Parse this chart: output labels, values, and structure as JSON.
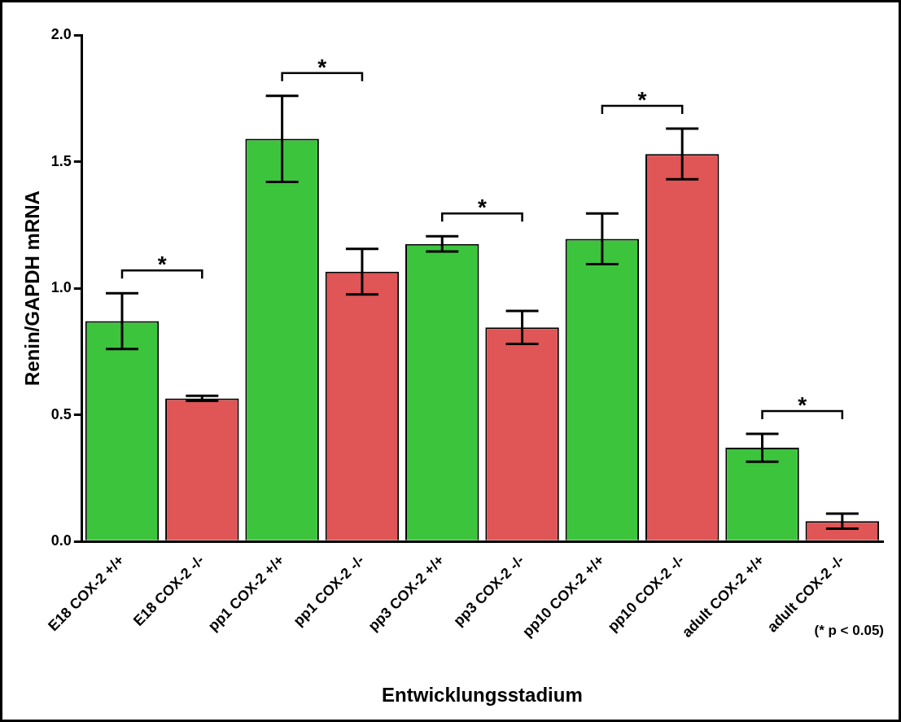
{
  "chart_data": {
    "type": "bar",
    "xlabel": "Entwicklungsstadium",
    "ylabel": "Renin/GAPDH mRNA",
    "categories": [
      "E18 COX-2 +/+",
      "E18 COX-2 -/-",
      "pp1 COX-2 +/+",
      "pp1 COX-2 -/-",
      "pp3 COX-2 +/+",
      "pp3 COX-2 -/-",
      "pp10 COX-2 +/+",
      "pp10 COX-2 -/-",
      "adult COX-2 +/+",
      "adult COX-2 -/-"
    ],
    "values": [
      0.87,
      0.565,
      1.59,
      1.065,
      1.175,
      0.845,
      1.195,
      1.53,
      0.37,
      0.08
    ],
    "errors": [
      0.11,
      0.01,
      0.17,
      0.09,
      0.03,
      0.065,
      0.1,
      0.1,
      0.055,
      0.03
    ],
    "colors": [
      "#3dc43d",
      "#e05555",
      "#3dc43d",
      "#e05555",
      "#3dc43d",
      "#e05555",
      "#3dc43d",
      "#e05555",
      "#3dc43d",
      "#e05555"
    ],
    "ylim": [
      0,
      2
    ],
    "yticks": [
      {
        "value": 0,
        "label": "0.0"
      },
      0.5,
      {
        "value": 1,
        "label": "1.0"
      },
      1.5,
      {
        "value": 2,
        "label": "2.0"
      }
    ],
    "grid": false,
    "legend": false,
    "annotations": [
      "*",
      "*",
      "*",
      "*",
      "*",
      "(* p < 0.05)"
    ]
  }
}
